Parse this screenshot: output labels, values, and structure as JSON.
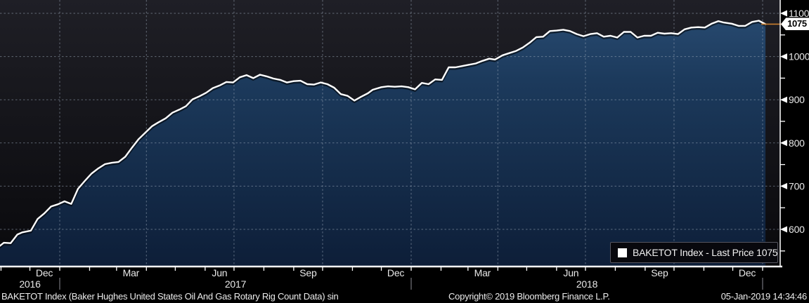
{
  "chart_data": {
    "type": "area",
    "title": "BAKETOT Index (Baker Hughes United States Oil And Gas Rotary Rig Count Data)",
    "legend_position": "bottom-right",
    "grid": true,
    "ylim": [
      514,
      1131
    ],
    "y_axis": {
      "major_ticks": [
        600,
        700,
        800,
        900,
        1000,
        1100
      ],
      "minor_ticks": [
        550,
        650,
        750,
        850,
        950,
        1050
      ]
    },
    "x_axis": {
      "month_labels": [
        {
          "text": "Dec",
          "mid": "2016-12-16"
        },
        {
          "text": "Mar",
          "mid": "2017-03-16"
        },
        {
          "text": "Jun",
          "mid": "2017-06-16"
        },
        {
          "text": "Sep",
          "mid": "2017-09-16"
        },
        {
          "text": "Dec",
          "mid": "2017-12-16"
        },
        {
          "text": "Mar",
          "mid": "2018-03-16"
        },
        {
          "text": "Jun",
          "mid": "2018-06-16"
        },
        {
          "text": "Sep",
          "mid": "2018-09-16"
        },
        {
          "text": "Dec",
          "mid": "2018-12-16"
        }
      ],
      "year_labels": [
        "2016",
        "2017",
        "2018"
      ],
      "year_boundaries": [
        "2017-01-01",
        "2018-01-01",
        "2019-01-01"
      ],
      "quarter_gridlines": [
        "2017-01-01",
        "2017-04-01",
        "2017-07-01",
        "2017-10-01",
        "2018-01-01",
        "2018-04-01",
        "2018-07-01",
        "2018-10-01",
        "2019-01-01"
      ]
    },
    "series": [
      {
        "name": "BAKETOT Index - Last Price",
        "last_price": 1075,
        "dates": [
          "2016-10-28",
          "2016-11-04",
          "2016-11-11",
          "2016-11-18",
          "2016-11-23",
          "2016-12-02",
          "2016-12-09",
          "2016-12-16",
          "2016-12-23",
          "2016-12-30",
          "2017-01-06",
          "2017-01-13",
          "2017-01-20",
          "2017-01-27",
          "2017-02-03",
          "2017-02-10",
          "2017-02-17",
          "2017-02-24",
          "2017-03-03",
          "2017-03-10",
          "2017-03-17",
          "2017-03-24",
          "2017-03-31",
          "2017-04-07",
          "2017-04-13",
          "2017-04-21",
          "2017-04-28",
          "2017-05-05",
          "2017-05-12",
          "2017-05-19",
          "2017-05-26",
          "2017-06-02",
          "2017-06-09",
          "2017-06-16",
          "2017-06-23",
          "2017-06-30",
          "2017-07-07",
          "2017-07-14",
          "2017-07-21",
          "2017-07-28",
          "2017-08-04",
          "2017-08-11",
          "2017-08-18",
          "2017-08-25",
          "2017-09-01",
          "2017-09-08",
          "2017-09-15",
          "2017-09-22",
          "2017-09-29",
          "2017-10-06",
          "2017-10-13",
          "2017-10-20",
          "2017-10-27",
          "2017-11-03",
          "2017-11-10",
          "2017-11-17",
          "2017-11-22",
          "2017-12-01",
          "2017-12-08",
          "2017-12-15",
          "2017-12-22",
          "2017-12-29",
          "2018-01-05",
          "2018-01-12",
          "2018-01-19",
          "2018-01-26",
          "2018-02-02",
          "2018-02-09",
          "2018-02-16",
          "2018-02-23",
          "2018-03-02",
          "2018-03-09",
          "2018-03-16",
          "2018-03-23",
          "2018-03-29",
          "2018-04-06",
          "2018-04-13",
          "2018-04-20",
          "2018-04-27",
          "2018-05-04",
          "2018-05-11",
          "2018-05-18",
          "2018-05-25",
          "2018-06-01",
          "2018-06-08",
          "2018-06-15",
          "2018-06-22",
          "2018-06-29",
          "2018-07-06",
          "2018-07-13",
          "2018-07-20",
          "2018-07-27",
          "2018-08-03",
          "2018-08-10",
          "2018-08-17",
          "2018-08-24",
          "2018-08-31",
          "2018-09-07",
          "2018-09-14",
          "2018-09-21",
          "2018-09-28",
          "2018-10-05",
          "2018-10-12",
          "2018-10-19",
          "2018-10-26",
          "2018-11-02",
          "2018-11-09",
          "2018-11-16",
          "2018-11-21",
          "2018-11-30",
          "2018-12-07",
          "2018-12-14",
          "2018-12-21",
          "2018-12-28",
          "2019-01-04"
        ],
        "values": [
          557,
          569,
          568,
          588,
          593,
          597,
          624,
          637,
          653,
          658,
          665,
          659,
          694,
          712,
          729,
          741,
          751,
          754,
          756,
          768,
          789,
          809,
          824,
          839,
          847,
          857,
          870,
          877,
          885,
          901,
          908,
          916,
          927,
          933,
          941,
          940,
          952,
          957,
          950,
          958,
          954,
          949,
          946,
          940,
          943,
          944,
          936,
          935,
          940,
          936,
          928,
          913,
          909,
          898,
          907,
          915,
          923,
          929,
          931,
          930,
          931,
          929,
          924,
          939,
          936,
          947,
          946,
          975,
          975,
          978,
          981,
          984,
          990,
          995,
          993,
          1003,
          1008,
          1013,
          1021,
          1032,
          1045,
          1046,
          1059,
          1060,
          1062,
          1059,
          1052,
          1047,
          1052,
          1054,
          1046,
          1048,
          1044,
          1057,
          1057,
          1044,
          1048,
          1048,
          1055,
          1053,
          1054,
          1052,
          1063,
          1067,
          1068,
          1067,
          1076,
          1082,
          1079,
          1076,
          1071,
          1071,
          1080,
          1083,
          1075
        ]
      }
    ]
  },
  "legend": {
    "label": "BAKETOT Index - Last Price 1075"
  },
  "price_tag": {
    "value": "1075"
  },
  "footer": {
    "left": "BAKETOT Index (Baker Hughes United States Oil And Gas Rotary Rig Count Data) sin",
    "center": "Copyright© 2019 Bloomberg Finance L.P.",
    "right": "05-Jan-2019 14:34:46"
  },
  "colors": {
    "line": "#ffffff",
    "line_shadow": "rgba(0,0,0,0.55)",
    "area_top": "#2a4d74",
    "area_mid": "#1c3a5c",
    "area_bottom": "#0d1e38",
    "background_top": "#1f1f26",
    "background_bottom": "#09090c",
    "grid": "#9aa7b8",
    "last_price_line": "#cc7f2f",
    "axis": "#ffffff",
    "year_separator": "#8a8a92"
  }
}
